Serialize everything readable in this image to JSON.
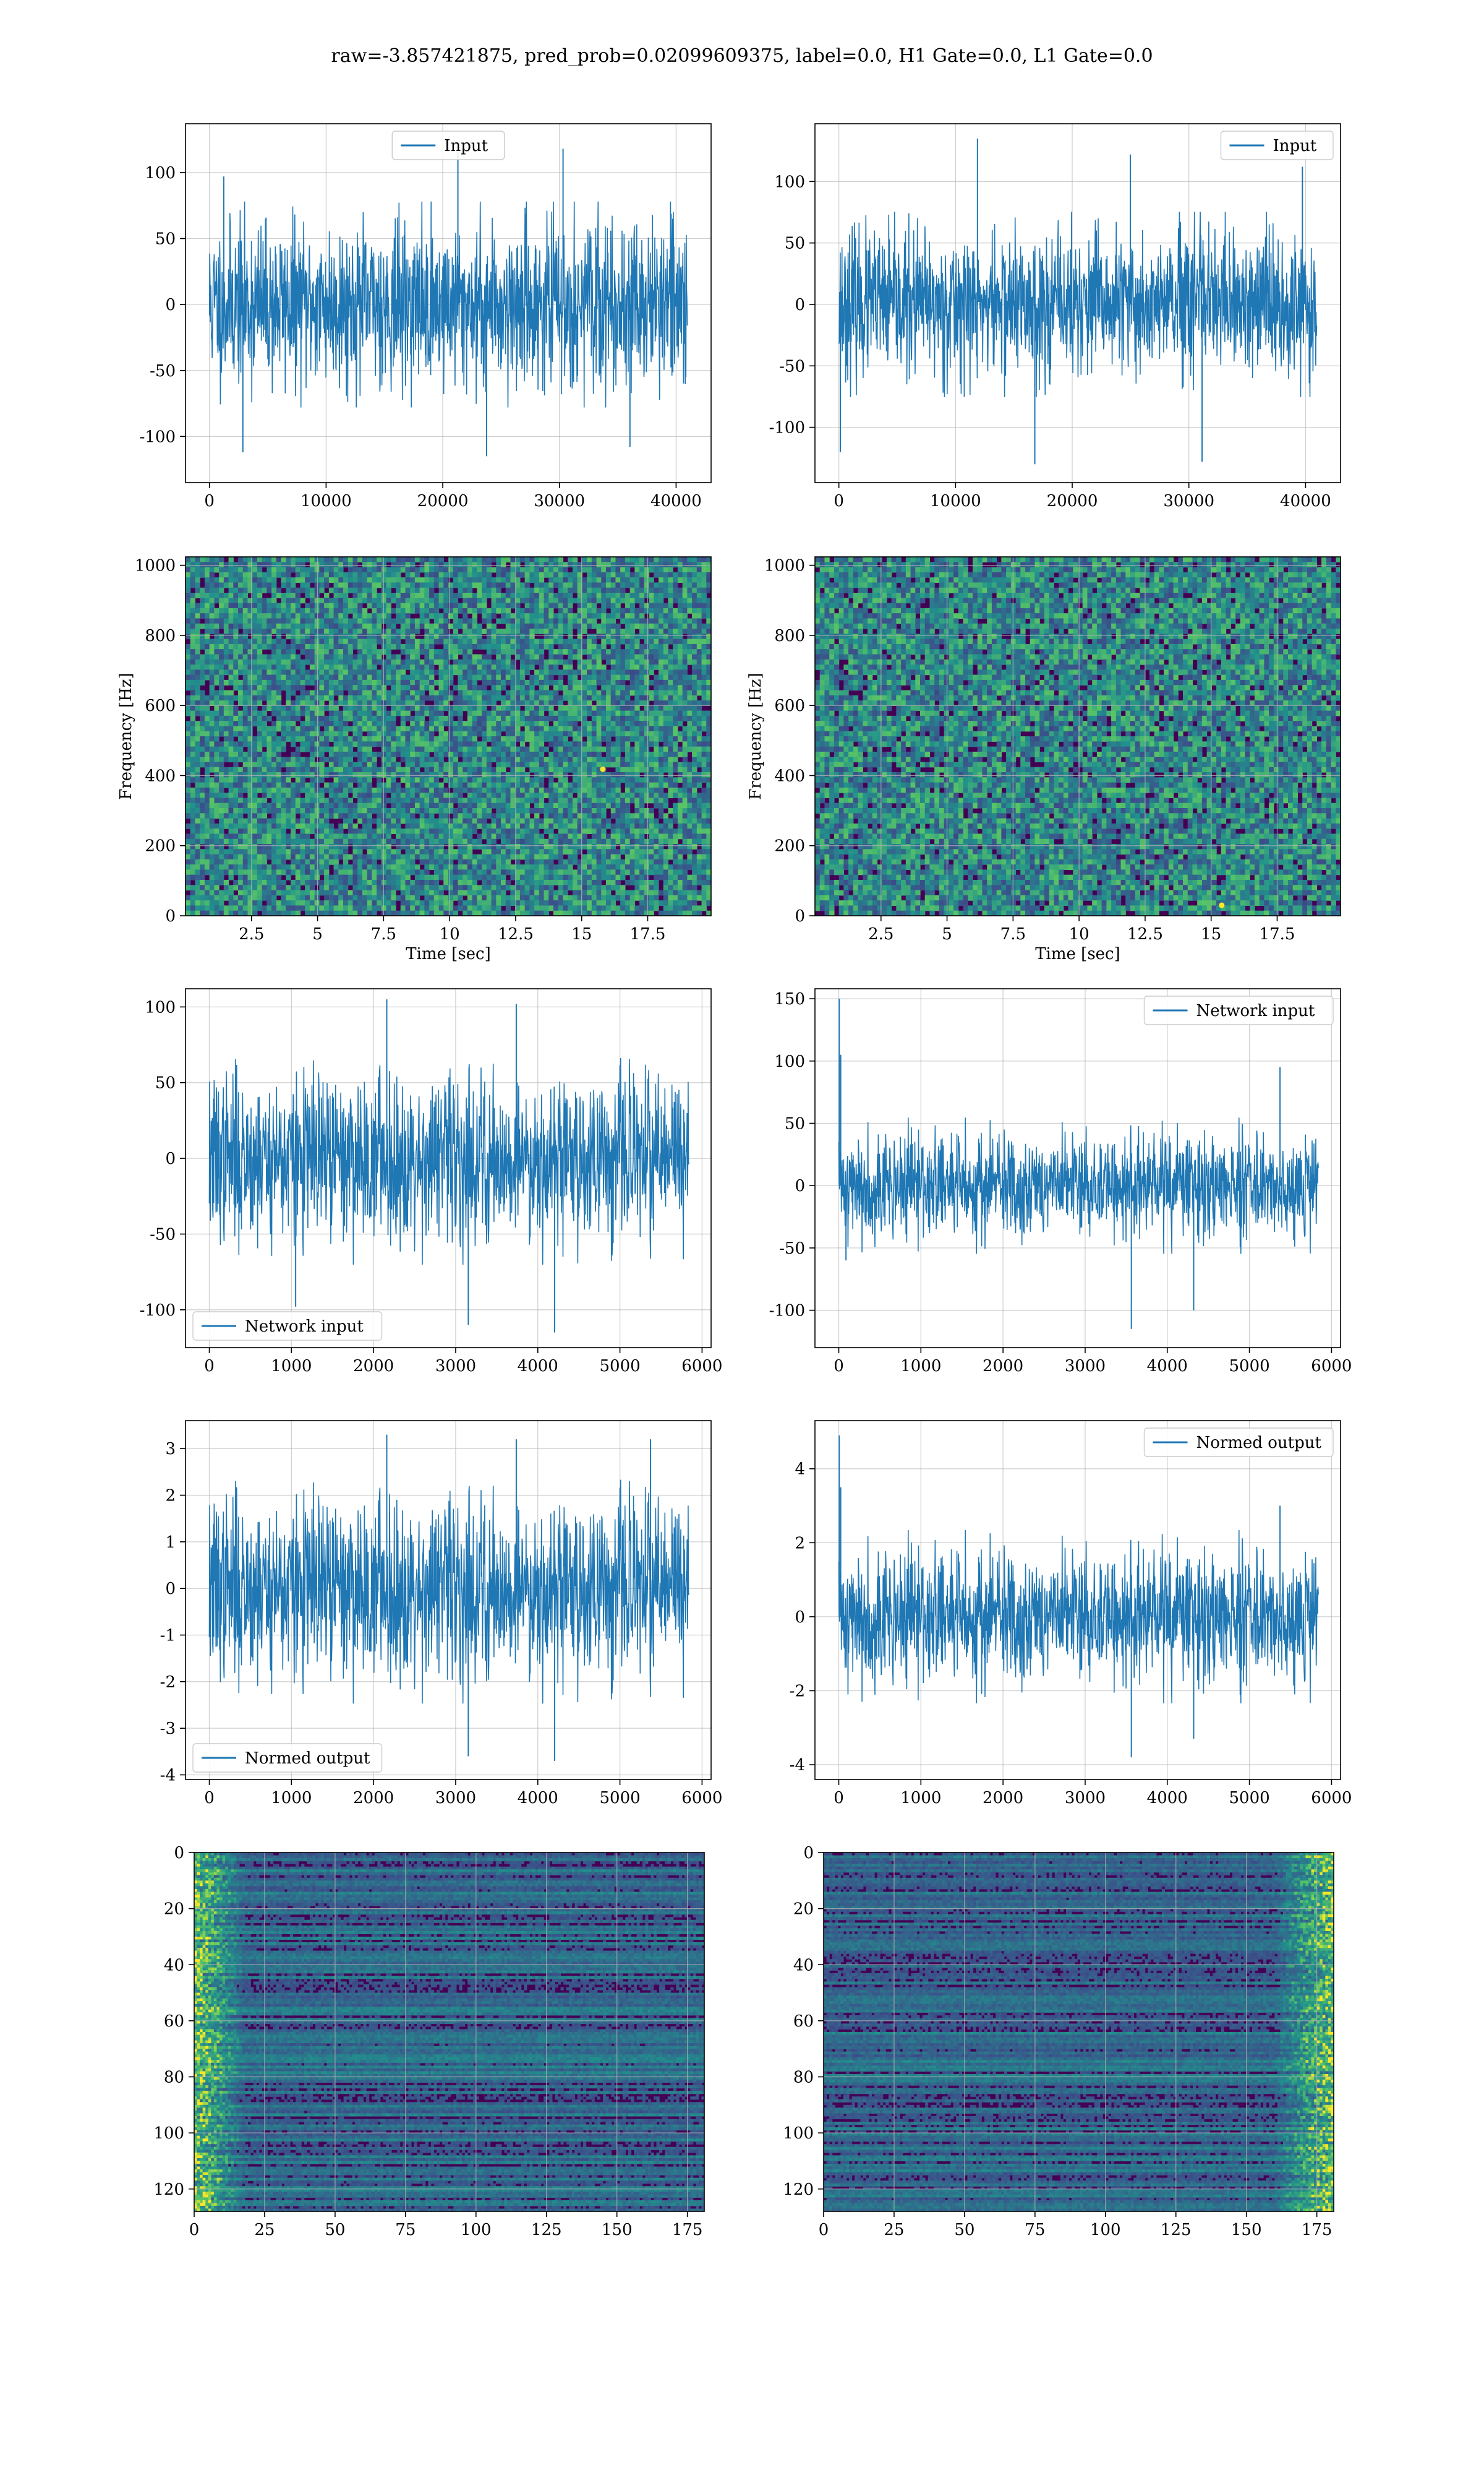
{
  "figure": {
    "suptitle": "raw=-3.857421875, pred_prob=0.02099609375, label=0.0, H1 Gate=0.0, L1 Gate=0.0"
  },
  "colors": {
    "series": "#1f77b4",
    "grid": "#b0b0b0",
    "axis": "#000000",
    "viridis_low": "#440154",
    "viridis_mid": "#21918c",
    "viridis_high": "#fde725"
  },
  "chart_data": [
    {
      "id": "r0c0",
      "type": "line",
      "legend": "Input",
      "legend_loc": "upper center",
      "title": "",
      "xlabel": "",
      "ylabel": "",
      "xlim": [
        -2050,
        43000
      ],
      "ylim": [
        -135,
        137
      ],
      "xticks": [
        0,
        10000,
        20000,
        30000,
        40000
      ],
      "yticks": [
        -100,
        -50,
        0,
        50,
        100
      ],
      "signal": {
        "x_start": 0,
        "x_end": 40960,
        "n": 1400,
        "sigma": 30,
        "spikes": [
          [
            0.03,
            97
          ],
          [
            0.07,
            -112
          ],
          [
            0.52,
            120
          ],
          [
            0.74,
            118
          ],
          [
            0.58,
            -115
          ],
          [
            0.88,
            -108
          ]
        ],
        "seed": 11
      }
    },
    {
      "id": "r0c1",
      "type": "line",
      "legend": "Input",
      "legend_loc": "upper right",
      "title": "",
      "xlabel": "",
      "ylabel": "",
      "xlim": [
        -2050,
        43000
      ],
      "ylim": [
        -145,
        147
      ],
      "xticks": [
        0,
        10000,
        20000,
        30000,
        40000
      ],
      "yticks": [
        -100,
        -50,
        0,
        50,
        100
      ],
      "signal": {
        "x_start": 0,
        "x_end": 40960,
        "n": 1400,
        "sigma": 29,
        "spikes": [
          [
            0.003,
            -120
          ],
          [
            0.29,
            135
          ],
          [
            0.41,
            -130
          ],
          [
            0.61,
            122
          ],
          [
            0.76,
            -128
          ],
          [
            0.97,
            112
          ]
        ],
        "seed": 23
      }
    },
    {
      "id": "r1c0",
      "type": "heatmap",
      "title": "",
      "xlabel": "Time [sec]",
      "ylabel": "Frequency [Hz]",
      "xlim": [
        0,
        19.9
      ],
      "ylim": [
        0,
        1024
      ],
      "y_direction": "up",
      "xticks": [
        2.5,
        5.0,
        7.5,
        10.0,
        12.5,
        15.0,
        17.5
      ],
      "yticks": [
        0,
        200,
        400,
        600,
        800,
        1000
      ],
      "grid_cells": {
        "cols": 110,
        "rows": 70,
        "base": 0.18,
        "noise": 0.55,
        "hot": [
          [
            15.8,
            418,
            1.0
          ]
        ],
        "seed": 5
      }
    },
    {
      "id": "r1c1",
      "type": "heatmap",
      "title": "",
      "xlabel": "Time [sec]",
      "ylabel": "Frequency [Hz]",
      "xlim": [
        0,
        19.9
      ],
      "ylim": [
        0,
        1024
      ],
      "y_direction": "up",
      "xticks": [
        2.5,
        5.0,
        7.5,
        10.0,
        12.5,
        15.0,
        17.5
      ],
      "yticks": [
        0,
        200,
        400,
        600,
        800,
        1000
      ],
      "grid_cells": {
        "cols": 110,
        "rows": 70,
        "base": 0.18,
        "noise": 0.55,
        "hot": [
          [
            15.4,
            30,
            1.0
          ]
        ],
        "seed": 9
      }
    },
    {
      "id": "r2c0",
      "type": "line",
      "legend": "Network input",
      "legend_loc": "lower left",
      "title": "",
      "xlabel": "",
      "ylabel": "",
      "xlim": [
        -290,
        6110
      ],
      "ylim": [
        -125,
        112
      ],
      "xticks": [
        0,
        1000,
        2000,
        3000,
        4000,
        5000,
        6000
      ],
      "yticks": [
        -100,
        -50,
        0,
        50,
        100
      ],
      "signal": {
        "x_start": 0,
        "x_end": 5840,
        "n": 1300,
        "sigma": 27,
        "spikes": [
          [
            0.37,
            105
          ],
          [
            0.54,
            -110
          ],
          [
            0.72,
            -115
          ],
          [
            0.64,
            102
          ],
          [
            0.18,
            -98
          ]
        ],
        "seed": 37
      }
    },
    {
      "id": "r2c1",
      "type": "line",
      "legend": "Network input",
      "legend_loc": "upper right",
      "title": "",
      "xlabel": "",
      "ylabel": "",
      "xlim": [
        -290,
        6110
      ],
      "ylim": [
        -130,
        158
      ],
      "xticks": [
        0,
        1000,
        2000,
        3000,
        4000,
        5000,
        6000
      ],
      "yticks": [
        -100,
        -50,
        0,
        50,
        100,
        150
      ],
      "signal": {
        "x_start": 0,
        "x_end": 5840,
        "n": 1300,
        "sigma": 21,
        "spikes": [
          [
            0.001,
            150
          ],
          [
            0.004,
            105
          ],
          [
            0.015,
            -60
          ],
          [
            0.61,
            -115
          ],
          [
            0.74,
            -100
          ],
          [
            0.92,
            95
          ]
        ],
        "seed": 41
      }
    },
    {
      "id": "r3c0",
      "type": "line",
      "legend": "Normed output",
      "legend_loc": "lower left",
      "title": "",
      "xlabel": "",
      "ylabel": "",
      "xlim": [
        -290,
        6110
      ],
      "ylim": [
        -4.1,
        3.6
      ],
      "xticks": [
        0,
        1000,
        2000,
        3000,
        4000,
        5000,
        6000
      ],
      "yticks": [
        -4,
        -3,
        -2,
        -1,
        0,
        1,
        2,
        3
      ],
      "signal": {
        "x_start": 0,
        "x_end": 5840,
        "n": 1300,
        "sigma": 0.95,
        "spikes": [
          [
            0.54,
            -3.6
          ],
          [
            0.72,
            -3.7
          ],
          [
            0.37,
            3.3
          ],
          [
            0.64,
            3.2
          ],
          [
            0.92,
            3.2
          ]
        ],
        "seed": 37
      }
    },
    {
      "id": "r3c1",
      "type": "line",
      "legend": "Normed output",
      "legend_loc": "upper right",
      "title": "",
      "xlabel": "",
      "ylabel": "",
      "xlim": [
        -290,
        6110
      ],
      "ylim": [
        -4.4,
        5.3
      ],
      "xticks": [
        0,
        1000,
        2000,
        3000,
        4000,
        5000,
        6000
      ],
      "yticks": [
        -4,
        -2,
        0,
        2,
        4
      ],
      "signal": {
        "x_start": 0,
        "x_end": 5840,
        "n": 1300,
        "sigma": 0.9,
        "spikes": [
          [
            0.001,
            4.9
          ],
          [
            0.004,
            3.5
          ],
          [
            0.61,
            -3.8
          ],
          [
            0.74,
            -3.3
          ],
          [
            0.92,
            3.0
          ]
        ],
        "seed": 41
      }
    },
    {
      "id": "r4c0",
      "type": "heatmap",
      "title": "",
      "xlabel": "",
      "ylabel": "",
      "xlim": [
        0,
        181
      ],
      "ylim": [
        0,
        128
      ],
      "y_direction": "down",
      "xticks": [
        0,
        25,
        50,
        75,
        100,
        125,
        150,
        175
      ],
      "yticks": [
        0,
        20,
        40,
        60,
        80,
        100,
        120
      ],
      "grid_cells": {
        "cols": 181,
        "rows": 128,
        "base": 0.14,
        "noise": 0.2,
        "row_streaks": true,
        "hot_band_x": [
          0,
          18
        ],
        "hot_side": "left",
        "seed": 13
      }
    },
    {
      "id": "r4c1",
      "type": "heatmap",
      "title": "",
      "xlabel": "",
      "ylabel": "",
      "xlim": [
        0,
        181
      ],
      "ylim": [
        0,
        128
      ],
      "y_direction": "down",
      "xticks": [
        0,
        25,
        50,
        75,
        100,
        125,
        150,
        175
      ],
      "yticks": [
        0,
        20,
        40,
        60,
        80,
        100,
        120
      ],
      "grid_cells": {
        "cols": 181,
        "rows": 128,
        "base": 0.14,
        "noise": 0.2,
        "row_streaks": true,
        "hot_band_x": [
          160,
          181
        ],
        "hot_side": "right",
        "seed": 17
      }
    }
  ]
}
